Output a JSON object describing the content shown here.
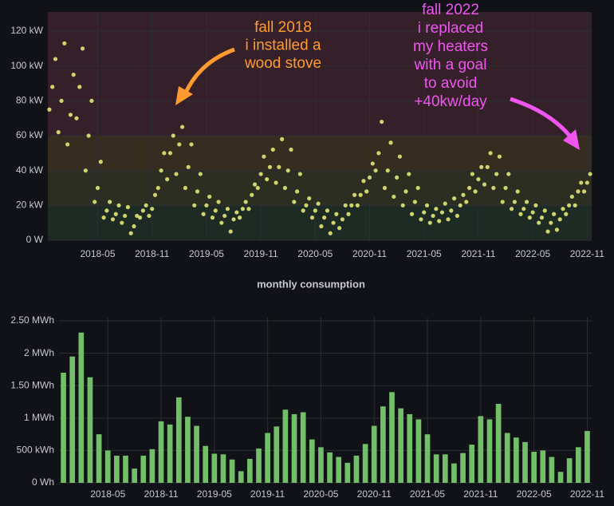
{
  "chart_data": [
    {
      "type": "scatter",
      "color": "#cfd46c",
      "grid": true,
      "ylim": [
        0,
        131
      ],
      "yticks": [
        {
          "value": 0,
          "label": "0 W"
        },
        {
          "value": 20,
          "label": "20 kW"
        },
        {
          "value": 40,
          "label": "40 kW"
        },
        {
          "value": 60,
          "label": "60 kW"
        },
        {
          "value": 80,
          "label": "80 kW"
        },
        {
          "value": 100,
          "label": "100 kW"
        },
        {
          "value": 120,
          "label": "120 kW"
        }
      ],
      "bands": [
        {
          "from": 0,
          "to": 20,
          "color": "#1d2b24"
        },
        {
          "from": 20,
          "to": 40,
          "color": "#2b2e20"
        },
        {
          "from": 40,
          "to": 60,
          "color": "#372c20"
        },
        {
          "from": 60,
          "to": 131,
          "color": "#35202a"
        }
      ],
      "annotations": [
        {
          "color": "#ff9a30",
          "lines": [
            "fall 2018",
            "i installed a",
            "wood stove"
          ]
        },
        {
          "color": "#f055f0",
          "lines": [
            "fall 2022",
            "i replaced",
            "my heaters",
            "with a goal",
            "to avoid",
            "+40kw/day"
          ]
        }
      ],
      "categories": [
        null,
        null,
        null,
        null,
        null,
        "2018-05",
        null,
        null,
        null,
        null,
        null,
        "2018-11",
        null,
        null,
        null,
        null,
        null,
        "2019-05",
        null,
        null,
        null,
        null,
        null,
        "2019-11",
        null,
        null,
        null,
        null,
        null,
        "2020-05",
        null,
        null,
        null,
        null,
        null,
        "2020-11",
        null,
        null,
        null,
        null,
        null,
        "2021-05",
        null,
        null,
        null,
        null,
        null,
        "2021-11",
        null,
        null,
        null,
        null,
        null,
        "2022-05",
        null,
        null,
        null,
        null,
        null,
        "2022-11"
      ],
      "values": [
        [
          75,
          88,
          104
        ],
        [
          62,
          80,
          113
        ],
        [
          55,
          72,
          95
        ],
        [
          70,
          88,
          110
        ],
        [
          40,
          60,
          80
        ],
        [
          22,
          30,
          45
        ],
        [
          13,
          17,
          22
        ],
        [
          12,
          15,
          20
        ],
        [
          10,
          14,
          19
        ],
        [
          4,
          8,
          14
        ],
        [
          13,
          17,
          20
        ],
        [
          14,
          18,
          26
        ],
        [
          30,
          40,
          50
        ],
        [
          35,
          50,
          60
        ],
        [
          38,
          55,
          65
        ],
        [
          30,
          42,
          55
        ],
        [
          20,
          28,
          38
        ],
        [
          15,
          20,
          25
        ],
        [
          13,
          17,
          22
        ],
        [
          10,
          14,
          18
        ],
        [
          5,
          12,
          16
        ],
        [
          13,
          18,
          22
        ],
        [
          18,
          26,
          32
        ],
        [
          30,
          38,
          48
        ],
        [
          35,
          42,
          52
        ],
        [
          33,
          42,
          58
        ],
        [
          30,
          40,
          52
        ],
        [
          22,
          28,
          38
        ],
        [
          17,
          20,
          24
        ],
        [
          13,
          17,
          21
        ],
        [
          8,
          13,
          17
        ],
        [
          4,
          10,
          15
        ],
        [
          7,
          12,
          20
        ],
        [
          15,
          20,
          26
        ],
        [
          20,
          26,
          34
        ],
        [
          28,
          36,
          44
        ],
        [
          40,
          50,
          68
        ],
        [
          30,
          40,
          56
        ],
        [
          25,
          36,
          48
        ],
        [
          20,
          28,
          38
        ],
        [
          15,
          22,
          30
        ],
        [
          12,
          16,
          20
        ],
        [
          10,
          14,
          18
        ],
        [
          11,
          16,
          21
        ],
        [
          12,
          17,
          24
        ],
        [
          14,
          20,
          26
        ],
        [
          22,
          30,
          38
        ],
        [
          28,
          35,
          42
        ],
        [
          32,
          42,
          50
        ],
        [
          30,
          38,
          48
        ],
        [
          22,
          30,
          38
        ],
        [
          18,
          22,
          28
        ],
        [
          15,
          18,
          22
        ],
        [
          13,
          16,
          20
        ],
        [
          10,
          13,
          17
        ],
        [
          5,
          10,
          15
        ],
        [
          6,
          12,
          18
        ],
        [
          15,
          20,
          25
        ],
        [
          20,
          28,
          33
        ],
        [
          28,
          33,
          38
        ]
      ]
    },
    {
      "type": "bar",
      "title": "monthly consumption",
      "color": "#73bf69",
      "grid": true,
      "ylim": [
        0,
        2550
      ],
      "yticks": [
        {
          "value": 0,
          "label": "0 Wh"
        },
        {
          "value": 500,
          "label": "500 kWh"
        },
        {
          "value": 1000,
          "label": "1 MWh"
        },
        {
          "value": 1500,
          "label": "1.50 MWh"
        },
        {
          "value": 2000,
          "label": "2 MWh"
        },
        {
          "value": 2500,
          "label": "2.50 MWh"
        }
      ],
      "categories": [
        null,
        null,
        null,
        null,
        null,
        "2018-05",
        null,
        null,
        null,
        null,
        null,
        "2018-11",
        null,
        null,
        null,
        null,
        null,
        "2019-05",
        null,
        null,
        null,
        null,
        null,
        "2019-11",
        null,
        null,
        null,
        null,
        null,
        "2020-05",
        null,
        null,
        null,
        null,
        null,
        "2020-11",
        null,
        null,
        null,
        null,
        null,
        "2021-05",
        null,
        null,
        null,
        null,
        null,
        "2021-11",
        null,
        null,
        null,
        null,
        null,
        "2022-05",
        null,
        null,
        null,
        null,
        null,
        "2022-11"
      ],
      "values": [
        1700,
        1950,
        2320,
        1630,
        750,
        500,
        420,
        420,
        220,
        420,
        520,
        950,
        900,
        1320,
        1020,
        880,
        570,
        450,
        440,
        360,
        180,
        370,
        530,
        770,
        870,
        1130,
        1060,
        1090,
        670,
        550,
        470,
        400,
        310,
        420,
        600,
        880,
        1180,
        1400,
        1150,
        1060,
        980,
        750,
        440,
        440,
        300,
        460,
        590,
        1030,
        980,
        1220,
        770,
        700,
        630,
        480,
        500,
        400,
        170,
        380,
        550,
        800
      ]
    }
  ]
}
